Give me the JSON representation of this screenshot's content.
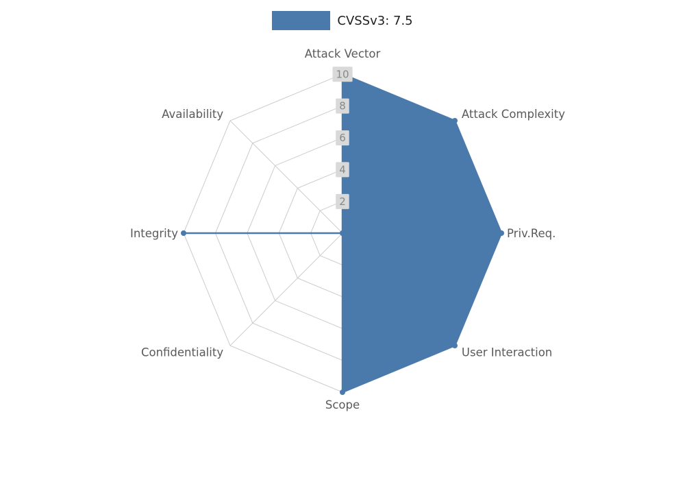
{
  "legend": {
    "label": "CVSSv3: 7.5"
  },
  "chart_data": {
    "type": "radar",
    "categories": [
      "Attack Vector",
      "Attack Complexity",
      "Priv.Req.",
      "User Interaction",
      "Scope",
      "Confidentiality",
      "Integrity",
      "Availability"
    ],
    "series": [
      {
        "name": "CVSSv3: 7.5",
        "values": [
          10,
          10,
          10,
          10,
          10,
          0,
          10,
          0
        ],
        "color": "#4a7aab"
      }
    ],
    "ticks": [
      2,
      4,
      6,
      8,
      10
    ],
    "rlim": [
      0,
      10
    ],
    "grid": true,
    "grid_shape": "polygon",
    "legend_position": "top-center"
  },
  "colors": {
    "background": "#ffffff",
    "series_fill": "#4a7aab",
    "grid_line": "#cccccc",
    "tick_text": "#888888",
    "tick_box": "#d9d9d9",
    "axis_label": "#5a5a5a",
    "legend_text": "#1f1f1f"
  }
}
